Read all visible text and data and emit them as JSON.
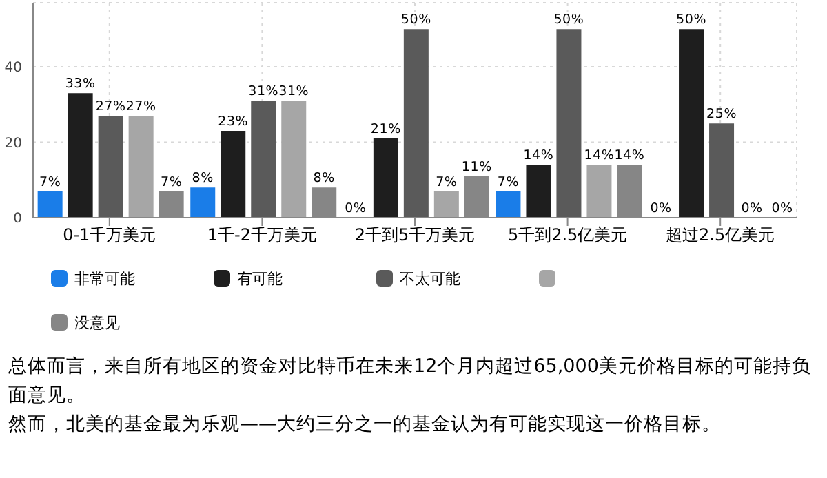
{
  "chart_data": {
    "type": "bar",
    "categories": [
      "0-1千万美元",
      "1千-2千万美元",
      "2千到5千万美元",
      "5千到2.5亿美元",
      "超过2.5亿美元"
    ],
    "series": [
      {
        "name": "非常可能",
        "color": "#1a7de8",
        "values": [
          7,
          8,
          0,
          7,
          0
        ],
        "value_labels": [
          "7%",
          "8%",
          "0%",
          "7%",
          "0%"
        ]
      },
      {
        "name": "有可能",
        "color": "#1e1e1e",
        "values": [
          33,
          23,
          21,
          14,
          50
        ],
        "value_labels": [
          "33%",
          "23%",
          "21%",
          "14%",
          "50%"
        ]
      },
      {
        "name": "不太可能",
        "color": "#5a5a5a",
        "values": [
          27,
          31,
          50,
          50,
          25
        ],
        "value_labels": [
          "27%",
          "31%",
          "50%",
          "50%",
          "25%"
        ]
      },
      {
        "color": "#a6a6a6",
        "values": [
          27,
          31,
          7,
          14,
          0
        ],
        "value_labels": [
          "27%",
          "31%",
          "7%",
          "14%",
          "0%"
        ]
      },
      {
        "name": "没意见",
        "color": "#868686",
        "values": [
          7,
          8,
          11,
          14,
          0
        ],
        "value_labels": [
          "7%",
          "8%",
          "11%",
          "14%",
          "0%"
        ]
      }
    ],
    "ylim": [
      0,
      57
    ],
    "yticks": [
      0,
      20,
      40
    ],
    "grid": true,
    "legend": "bottom",
    "annotations": [
      "总体而言，来自所有地区的资金对比特币在未来12个月内超过65,000美元价格目标的可能持负面意见。",
      "然而，北美的基金最为乐观——大约三分之一的基金认为有可能实现这一价格目标。"
    ]
  }
}
